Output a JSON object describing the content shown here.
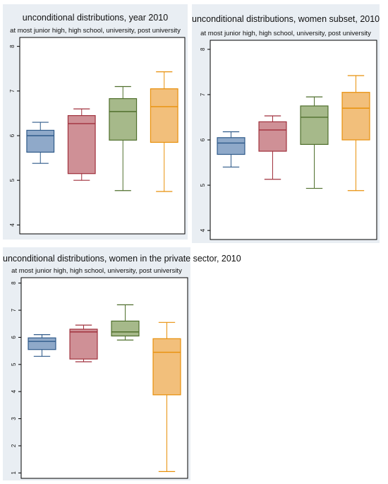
{
  "chart_data": [
    {
      "type": "box",
      "title": "unconditional distributions, year 2010",
      "subtitle": "at most junior high, high school, university, post university",
      "ylim": [
        3.8,
        8.2
      ],
      "yticks": [
        4,
        5,
        6,
        7,
        8
      ],
      "boxes": [
        {
          "color": "#2f5a8a",
          "fill": "#8fa9c9",
          "whisker_low": 5.38,
          "q1": 5.63,
          "median": 6.0,
          "q3": 6.12,
          "whisker_high": 6.3
        },
        {
          "color": "#a0313d",
          "fill": "#cf9096",
          "whisker_low": 5.0,
          "q1": 5.15,
          "median": 6.27,
          "q3": 6.45,
          "whisker_high": 6.6
        },
        {
          "color": "#4f6f2c",
          "fill": "#a6b98a",
          "whisker_low": 4.77,
          "q1": 5.9,
          "median": 6.54,
          "q3": 6.83,
          "whisker_high": 7.1
        },
        {
          "color": "#e8900a",
          "fill": "#f2bf7b",
          "whisker_low": 4.75,
          "q1": 5.85,
          "median": 6.65,
          "q3": 7.05,
          "whisker_high": 7.43
        }
      ]
    },
    {
      "type": "box",
      "title": "unconditional distributions, women subset, 2010",
      "subtitle": "at most junior high, high school, university, post university",
      "ylim": [
        3.8,
        8.2
      ],
      "yticks": [
        4,
        5,
        6,
        7,
        8
      ],
      "boxes": [
        {
          "color": "#2f5a8a",
          "fill": "#8fa9c9",
          "whisker_low": 5.4,
          "q1": 5.68,
          "median": 5.93,
          "q3": 6.05,
          "whisker_high": 6.18
        },
        {
          "color": "#a0313d",
          "fill": "#cf9096",
          "whisker_low": 5.13,
          "q1": 5.75,
          "median": 6.22,
          "q3": 6.4,
          "whisker_high": 6.53
        },
        {
          "color": "#4f6f2c",
          "fill": "#a6b98a",
          "whisker_low": 4.93,
          "q1": 5.9,
          "median": 6.5,
          "q3": 6.75,
          "whisker_high": 6.95
        },
        {
          "color": "#e8900a",
          "fill": "#f2bf7b",
          "whisker_low": 4.88,
          "q1": 6.0,
          "median": 6.7,
          "q3": 7.05,
          "whisker_high": 7.42
        }
      ]
    },
    {
      "type": "box",
      "title": "unconditional distributions, women in the private sector, 2010",
      "subtitle": "at most junior high, high school, university, post university",
      "ylim": [
        0.8,
        8.2
      ],
      "yticks": [
        1,
        2,
        3,
        4,
        5,
        6,
        7,
        8
      ],
      "boxes": [
        {
          "color": "#2f5a8a",
          "fill": "#8fa9c9",
          "whisker_low": 5.3,
          "q1": 5.55,
          "median": 5.85,
          "q3": 5.98,
          "whisker_high": 6.1
        },
        {
          "color": "#a0313d",
          "fill": "#cf9096",
          "whisker_low": 5.1,
          "q1": 5.2,
          "median": 6.2,
          "q3": 6.3,
          "whisker_high": 6.45
        },
        {
          "color": "#4f6f2c",
          "fill": "#a6b98a",
          "whisker_low": 5.9,
          "q1": 6.05,
          "median": 6.2,
          "q3": 6.6,
          "whisker_high": 7.2
        },
        {
          "color": "#e8900a",
          "fill": "#f2bf7b",
          "whisker_low": 1.05,
          "q1": 3.88,
          "median": 5.45,
          "q3": 5.95,
          "whisker_high": 6.55
        }
      ]
    }
  ]
}
